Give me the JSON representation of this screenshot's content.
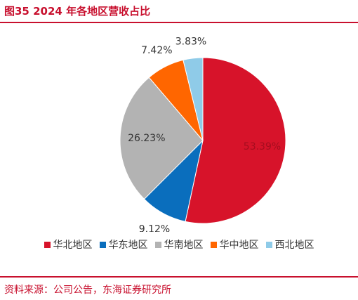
{
  "chart_data": {
    "type": "pie",
    "title": "图35  2024 年各地区营收占比",
    "categories": [
      "华北地区",
      "华东地区",
      "华南地区",
      "华中地区",
      "西北地区"
    ],
    "values": [
      53.39,
      9.12,
      26.23,
      7.42,
      3.83
    ],
    "value_labels": [
      "53.39%",
      "9.12%",
      "26.23%",
      "7.42%",
      "3.83%"
    ],
    "colors": [
      "#d7132a",
      "#0a6ebd",
      "#b3b3b3",
      "#ff6600",
      "#8fcbe8"
    ],
    "legend": "bottom"
  },
  "source": "资料来源：公司公告，东海证券研究所"
}
